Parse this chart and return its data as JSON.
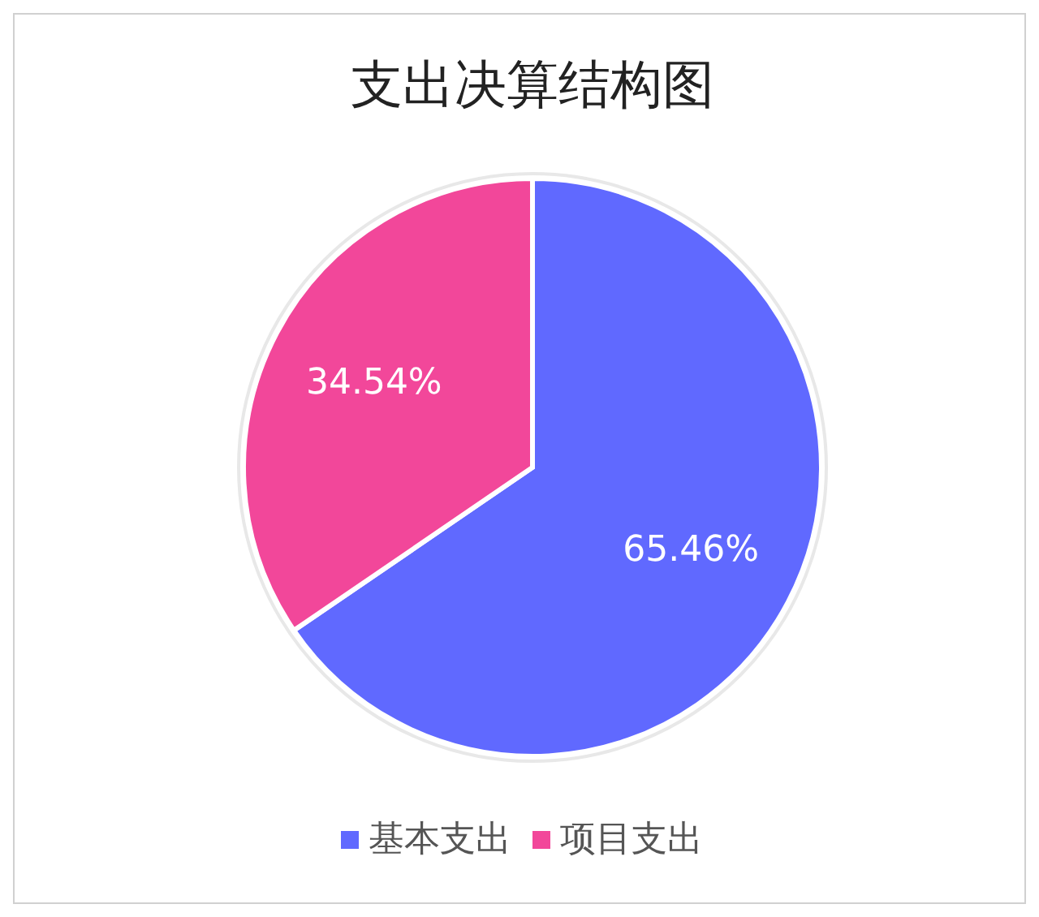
{
  "chart_data": {
    "type": "pie",
    "title": "支出决算结构图",
    "categories": [
      "基本支出",
      "项目支出"
    ],
    "values": [
      65.46,
      34.54
    ],
    "colors": [
      "#6069ff",
      "#f2479a"
    ],
    "value_labels": [
      "65.46%",
      "34.54%"
    ],
    "legend": "bottom"
  }
}
